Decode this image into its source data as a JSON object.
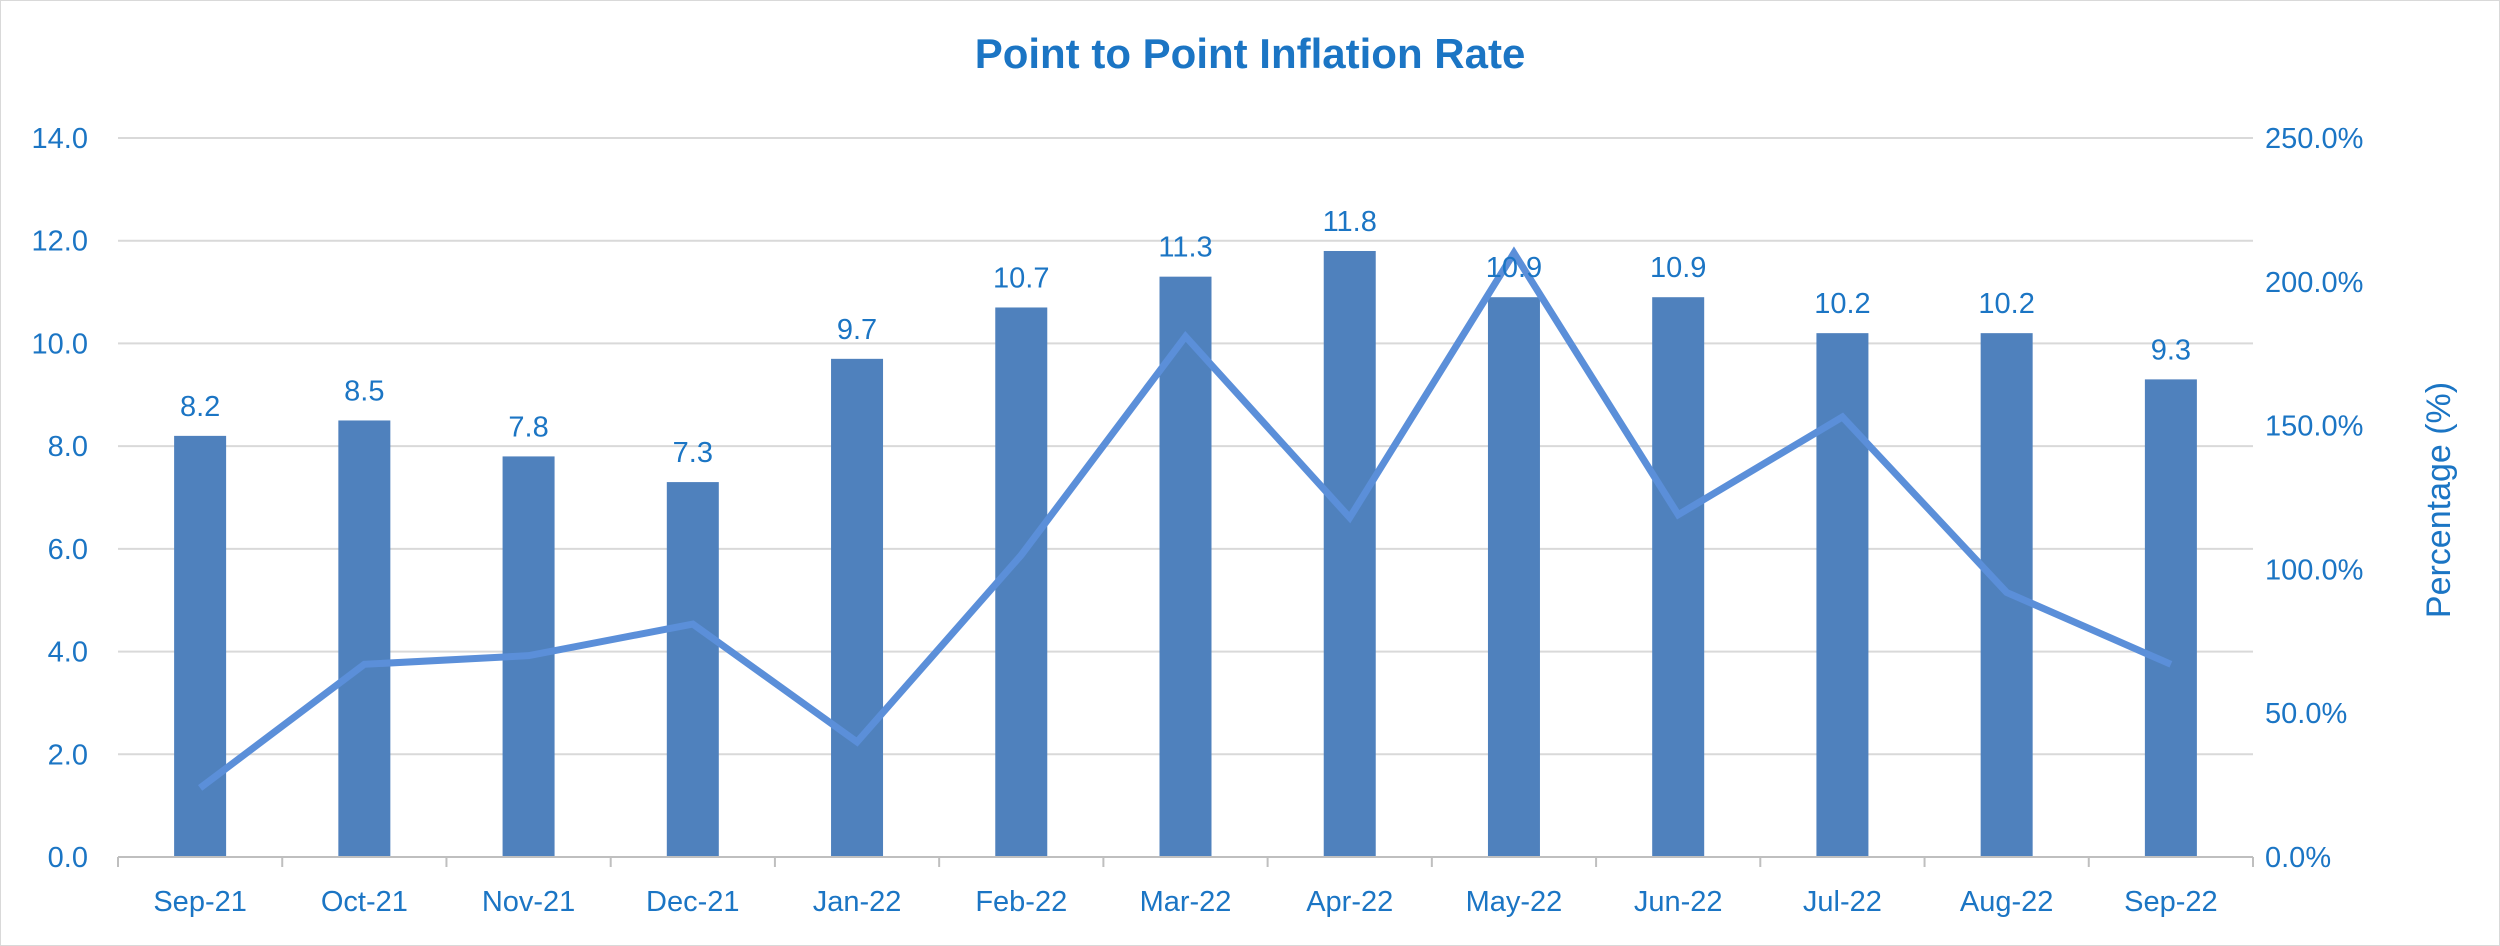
{
  "chart_data": {
    "type": "bar",
    "title": "Point to Point Inflation Rate",
    "categories": [
      "Sep-21",
      "Oct-21",
      "Nov-21",
      "Dec-21",
      "Jan-22",
      "Feb-22",
      "Mar-22",
      "Apr-22",
      "May-22",
      "Jun-22",
      "Jul-22",
      "Aug-22",
      "Sep-22"
    ],
    "series": [
      {
        "type": "bar",
        "axis": "left",
        "color": "#4f81bd",
        "values": [
          8.2,
          8.5,
          7.8,
          7.3,
          9.7,
          10.7,
          11.3,
          11.8,
          10.9,
          10.9,
          10.2,
          10.2,
          9.3
        ],
        "data_labels": [
          "8.2",
          "8.5",
          "7.8",
          "7.3",
          "9.7",
          "10.7",
          "11.3",
          "11.8",
          "10.9",
          "10.9",
          "10.2",
          "10.2",
          "9.3"
        ]
      },
      {
        "type": "line",
        "axis": "right",
        "color": "#5b8fd9",
        "values": [
          24,
          67,
          70,
          81,
          40,
          105,
          181,
          118,
          210,
          119,
          153,
          92,
          67
        ]
      }
    ],
    "y_left": {
      "range": [
        0,
        14
      ],
      "ticks": [
        0,
        2,
        4,
        6,
        8,
        10,
        12,
        14
      ],
      "tick_labels": [
        "0.0",
        "2.0",
        "4.0",
        "6.0",
        "8.0",
        "10.0",
        "12.0",
        "14.0"
      ]
    },
    "y_right": {
      "range": [
        0,
        250
      ],
      "ticks": [
        0,
        50,
        100,
        150,
        200,
        250
      ],
      "tick_labels": [
        "0.0%",
        "50.0%",
        "100.0%",
        "150.0%",
        "200.0%",
        "250.0%"
      ],
      "label": "Percentage (%)"
    },
    "grid": true,
    "legend": "none",
    "colors": {
      "text": "#1b75c4",
      "grid": "#d9d9d9",
      "axis": "#bfbfbf"
    }
  }
}
